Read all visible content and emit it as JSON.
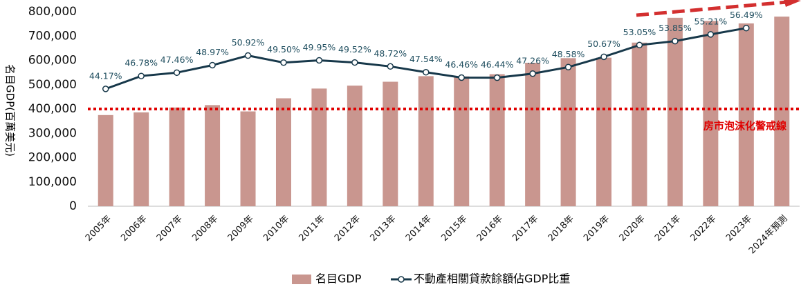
{
  "chart_data": {
    "type": "bar_line",
    "y_label": "名目GDP(百萬美元)",
    "categories": [
      "2005年",
      "2006年",
      "2007年",
      "2008年",
      "2009年",
      "2010年",
      "2011年",
      "2012年",
      "2013年",
      "2014年",
      "2015年",
      "2016年",
      "2017年",
      "2018年",
      "2019年",
      "2020年",
      "2021年",
      "2022年",
      "2023年",
      "2024年預測"
    ],
    "series": [
      {
        "name": "名目GDP",
        "type": "bar",
        "color": "#c9968f",
        "values": [
          375000,
          386000,
          406000,
          416000,
          390000,
          444000,
          484000,
          496000,
          512000,
          535000,
          534000,
          543000,
          590000,
          609000,
          611000,
          673000,
          775000,
          762000,
          752000,
          780000
        ]
      },
      {
        "name": "不動產相關貸款餘額佔GDP比重",
        "type": "line",
        "axis": "y2",
        "color": "#17384a",
        "values": [
          44.17,
          46.78,
          47.46,
          48.97,
          50.92,
          49.5,
          49.95,
          49.52,
          48.72,
          47.54,
          46.46,
          46.44,
          47.26,
          48.58,
          50.67,
          53.05,
          53.85,
          55.21,
          56.49,
          null
        ],
        "value_labels": [
          "44.17%",
          "46.78%",
          "47.46%",
          "48.97%",
          "50.92%",
          "49.50%",
          "49.95%",
          "49.52%",
          "48.72%",
          "47.54%",
          "46.46%",
          "46.44%",
          "47.26%",
          "48.58%",
          "50.67%",
          "53.05%",
          "53.85%",
          "55.21%",
          "56.49%",
          null
        ]
      }
    ],
    "ylim": [
      0,
      800000
    ],
    "yticks": [
      0,
      {
        "value": 100000,
        "label": "100,000"
      },
      {
        "value": 200000,
        "label": "200,000"
      },
      {
        "value": 300000,
        "label": "300,000"
      },
      {
        "value": 400000,
        "label": "400,000"
      },
      {
        "value": 500000,
        "label": "500,000"
      },
      {
        "value": 600000,
        "label": "600,000"
      },
      {
        "value": 700000,
        "label": "700,000"
      },
      {
        "value": 800000,
        "label": "800,000"
      }
    ],
    "y2lim": [
      20.4,
      59.8
    ],
    "reference_line": {
      "value": 400000,
      "label": "房市泡沫化警戒線",
      "color": "#e00000"
    },
    "legend": "bottom"
  }
}
